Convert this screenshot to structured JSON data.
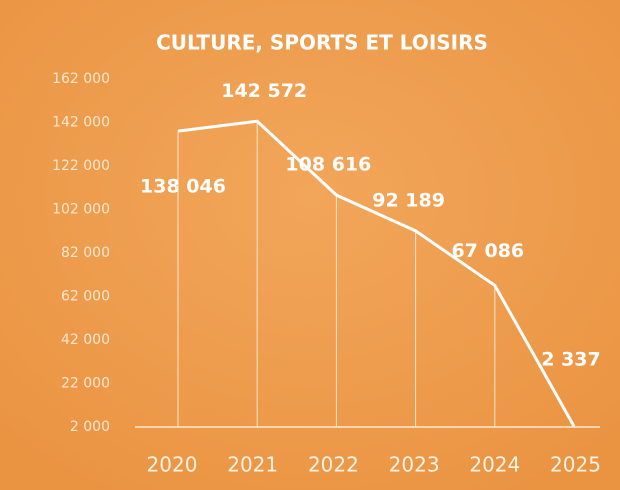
{
  "chart_data": {
    "type": "line",
    "title": "CULTURE, SPORTS ET LOISIRS",
    "categories": [
      "2020",
      "2021",
      "2022",
      "2023",
      "2024",
      "2025"
    ],
    "values": [
      138046,
      142572,
      108616,
      92189,
      67086,
      2337
    ],
    "value_labels": [
      "138 046",
      "142 572",
      "108 616",
      "92 189",
      "67 086",
      "2 337"
    ],
    "color": "#ffffff",
    "ylim": [
      2000,
      162000
    ],
    "yticks": [
      {
        "value": 2000,
        "label": "2 000"
      },
      {
        "value": 22000,
        "label": "22 000"
      },
      {
        "value": 42000,
        "label": "42 000"
      },
      {
        "value": 62000,
        "label": "62 000"
      },
      {
        "value": 82000,
        "label": "82 000"
      },
      {
        "value": 102000,
        "label": "102 000"
      },
      {
        "value": 122000,
        "label": "122 000"
      },
      {
        "value": 142000,
        "label": "142 000"
      },
      {
        "value": 162000,
        "label": "162 000"
      }
    ],
    "grid": false
  }
}
